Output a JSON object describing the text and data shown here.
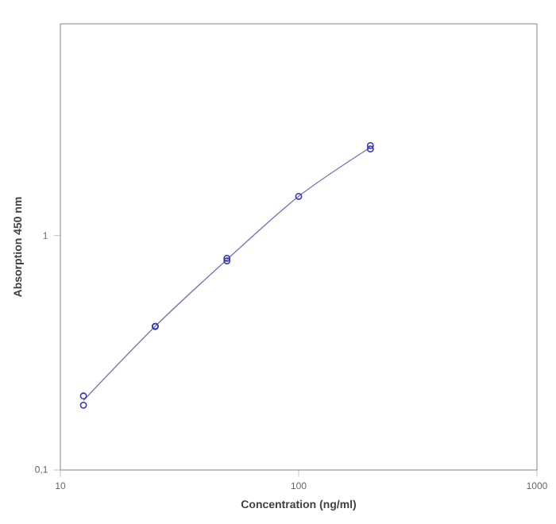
{
  "chart_data": {
    "type": "scatter",
    "xlabel": "Concentration (ng/ml)",
    "ylabel": "Absorption 450 nm",
    "log": "xy",
    "xlim": [
      10,
      1000
    ],
    "xticks": [
      10,
      100,
      1000
    ],
    "ylim": [
      0.1,
      8
    ],
    "yticks": [
      {
        "value": 0.1,
        "label": "0,1"
      },
      1
    ],
    "series": [
      {
        "marker": "circle",
        "color": "#3333bb",
        "x": [
          12.5,
          12.5,
          25,
          25,
          50,
          50,
          100,
          200,
          200
        ],
        "values": [
          0.207,
          0.189,
          0.41,
          0.41,
          0.8,
          0.78,
          1.47,
          2.42,
          2.34
        ]
      },
      {
        "type": "line",
        "color": "#7777bb",
        "x": [
          12.5,
          25,
          50,
          100,
          200
        ],
        "values": [
          0.198,
          0.41,
          0.79,
          1.47,
          2.38
        ]
      }
    ]
  }
}
